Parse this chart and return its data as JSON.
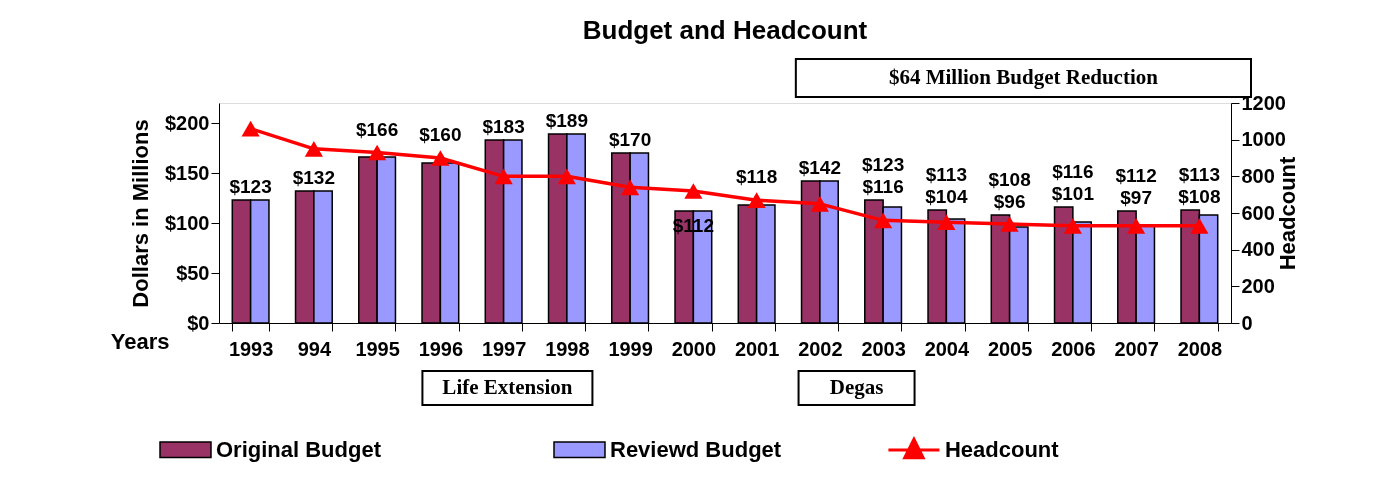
{
  "chart_data": {
    "type": "bar",
    "title": "Budget and Headcount",
    "xlabel": "Years",
    "ylabel": "Dollars in Millions",
    "y2label": "Headcount",
    "categories": [
      "1993",
      "994",
      "1995",
      "1996",
      "1997",
      "1998",
      "1999",
      "2000",
      "2001",
      "2002",
      "2003",
      "2004",
      "2005",
      "2006",
      "2007",
      "2008"
    ],
    "series": [
      {
        "name": "Original Budget",
        "color": "#993366",
        "values": [
          123,
          132,
          166,
          160,
          183,
          189,
          170,
          112,
          118,
          142,
          123,
          113,
          108,
          116,
          112,
          113
        ],
        "value_labels": [
          "$123",
          "$132",
          "$166",
          "$160",
          "$183",
          "$189",
          "$170",
          "$112",
          "$118",
          "$142",
          "$123",
          "$113",
          "$108",
          "$116",
          "$112",
          "$113"
        ]
      },
      {
        "name": "Reviewd Budget",
        "color": "#9999ff",
        "values": [
          123,
          132,
          166,
          160,
          183,
          189,
          170,
          112,
          118,
          142,
          116,
          104,
          96,
          101,
          97,
          108
        ],
        "value_labels": [
          null,
          null,
          null,
          null,
          null,
          null,
          null,
          null,
          null,
          null,
          "$116",
          "$104",
          "$96",
          "$101",
          "$97",
          "$108"
        ]
      },
      {
        "name": "Headcount",
        "type": "line",
        "axis": "y2",
        "color": "#ff0000",
        "marker": "triangle",
        "values": [
          1060,
          950,
          930,
          900,
          800,
          800,
          740,
          720,
          670,
          650,
          560,
          550,
          540,
          530,
          530,
          530
        ]
      }
    ],
    "ylim": [
      0,
      220
    ],
    "yticks": [
      {
        "value": 0,
        "label": "$0"
      },
      {
        "value": 50,
        "label": "$50"
      },
      {
        "value": 100,
        "label": "$100"
      },
      {
        "value": 150,
        "label": "$150"
      },
      {
        "value": 200,
        "label": "$200"
      }
    ],
    "y2lim": [
      0,
      1200
    ],
    "y2ticks": [
      0,
      200,
      400,
      600,
      800,
      1000,
      1200
    ],
    "legend": "bottom",
    "annotations": [
      "$64 Million Budget Reduction",
      "Life Extension",
      "Degas"
    ]
  }
}
